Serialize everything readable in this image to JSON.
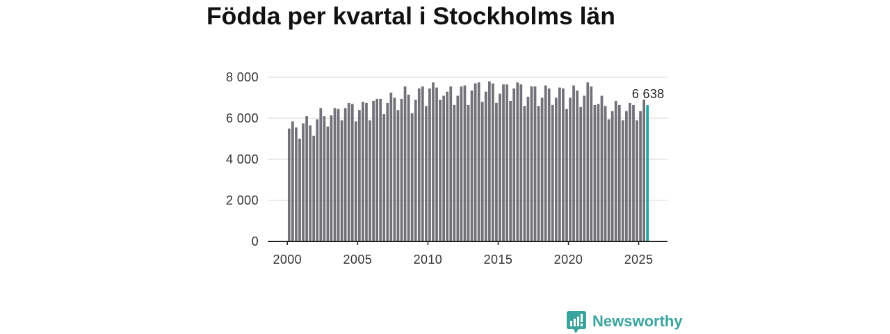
{
  "chart_data": {
    "type": "bar",
    "title": "Födda per kvartal i Stockholms län",
    "xlabel": "",
    "ylabel": "",
    "x_start": 2000,
    "periods_per_year": 4,
    "values": [
      5500,
      5850,
      5550,
      5000,
      5750,
      6100,
      5650,
      5150,
      5950,
      6500,
      6100,
      5600,
      6150,
      6500,
      6450,
      5900,
      6500,
      6750,
      6700,
      5850,
      6400,
      6800,
      6750,
      5900,
      6850,
      6950,
      6950,
      6200,
      6750,
      7250,
      7000,
      6400,
      6950,
      7550,
      7150,
      6250,
      6900,
      7450,
      7550,
      6600,
      7450,
      7750,
      7500,
      6900,
      7100,
      7300,
      7550,
      6650,
      7100,
      7550,
      7600,
      6650,
      7350,
      7700,
      7750,
      6800,
      7300,
      7800,
      7700,
      6750,
      7200,
      7650,
      7650,
      6850,
      7450,
      7750,
      7650,
      6600,
      7050,
      7550,
      7550,
      6600,
      7000,
      7600,
      7450,
      6650,
      7000,
      7500,
      7450,
      6450,
      7000,
      7600,
      7350,
      6550,
      7100,
      7750,
      7550,
      6650,
      6700,
      7100,
      6600,
      5950,
      6350,
      6850,
      6650,
      5900,
      6350,
      6750,
      6650,
      5900,
      6350,
      6900,
      6638
    ],
    "highlight": {
      "value": 6638,
      "label": "6 638"
    },
    "xlim": [
      1998.6,
      2027.05
    ],
    "ylim": [
      0,
      8000
    ],
    "xticks": [
      2000,
      2005,
      2010,
      2015,
      2020,
      2025
    ],
    "xtick_labels": [
      "2000",
      "2005",
      "2010",
      "2015",
      "2020",
      "2025"
    ],
    "yticks": [
      0,
      2000,
      4000,
      6000,
      8000
    ],
    "ytick_labels": [
      "0",
      "2 000",
      "4 000",
      "6 000",
      "8 000"
    ],
    "grid": true
  },
  "brand": {
    "name": "Newsworthy",
    "icon": "newsworthy-logo-icon"
  },
  "colors": {
    "bar": "#727177",
    "highlight": "#22a4a4",
    "grid": "#dddddd",
    "axis": "#222222",
    "brand": "#3ba39e"
  }
}
